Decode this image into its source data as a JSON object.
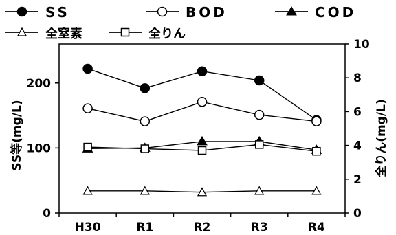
{
  "chart_data": {
    "type": "line",
    "categories": [
      "H30",
      "R1",
      "R2",
      "R3",
      "R4"
    ],
    "left_axis": {
      "label": "SS等(mg/L)",
      "range": [
        0,
        260
      ],
      "ticks": [
        0,
        100,
        200
      ]
    },
    "right_axis": {
      "label": "全りん(mg/L)",
      "range": [
        0,
        10
      ],
      "ticks": [
        0,
        2,
        4,
        6,
        8,
        10
      ]
    },
    "series": [
      {
        "name": "SS",
        "axis": "left",
        "marker": "filled-circle",
        "values": [
          222,
          192,
          218,
          204,
          143
        ]
      },
      {
        "name": "BOD",
        "axis": "left",
        "marker": "open-circle",
        "values": [
          161,
          141,
          171,
          151,
          141
        ]
      },
      {
        "name": "COD",
        "axis": "left",
        "marker": "filled-triangle",
        "values": [
          99,
          100,
          110,
          110,
          97
        ]
      },
      {
        "name": "全窒素",
        "axis": "left",
        "marker": "open-triangle",
        "values": [
          34,
          34,
          32,
          34,
          34
        ]
      },
      {
        "name": "全りん",
        "axis": "right",
        "marker": "open-square",
        "values": [
          3.9,
          3.8,
          3.7,
          4.05,
          3.65
        ]
      }
    ],
    "legend_placement": "top",
    "grid": false
  }
}
